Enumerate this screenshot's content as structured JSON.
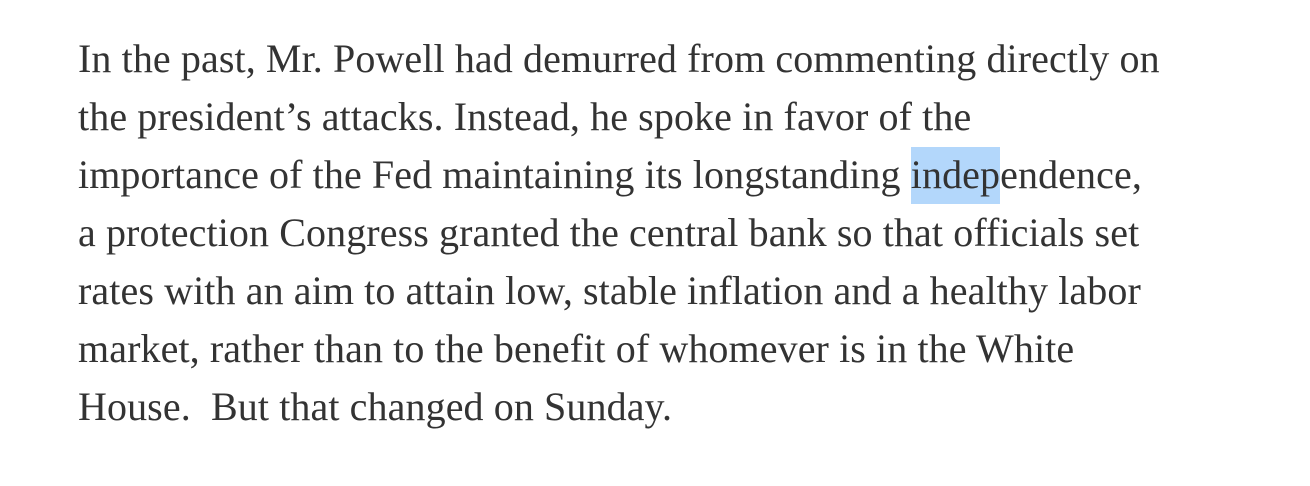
{
  "paragraph": {
    "full_text": "In the past, Mr. Powell had demurred from commenting directly on the president’s attacks. Instead, he spoke in favor of the importance of the Fed maintaining its longstanding independence, a protection Congress granted the central bank so that officials set rates with an aim to attain low, stable inflation and a healthy labor market, rather than to the benefit of whomever is in the White House.  But that changed on Sunday.",
    "selected_text": "indep",
    "lines": [
      {
        "pre": "In the past, Mr. Powell had demurred from commenting directly on",
        "selected": "",
        "post": ""
      },
      {
        "pre": "the president’s attacks. Instead, he spoke in favor of the",
        "selected": "",
        "post": ""
      },
      {
        "pre": "importance of the Fed maintaining its longstanding ",
        "selected": "indep",
        "post": "endence,"
      },
      {
        "pre": "a protection Congress granted the central bank so that officials set",
        "selected": "",
        "post": ""
      },
      {
        "pre": "rates with an aim to attain low, stable inflation and a healthy labor",
        "selected": "",
        "post": ""
      },
      {
        "pre": "market, rather than to the benefit of whomever is in the White",
        "selected": "",
        "post": ""
      },
      {
        "pre": "House.  But that changed on Sunday.",
        "selected": "",
        "post": ""
      }
    ]
  },
  "colors": {
    "text": "#333333",
    "selection": "#b3d7fb",
    "background": "#ffffff"
  }
}
